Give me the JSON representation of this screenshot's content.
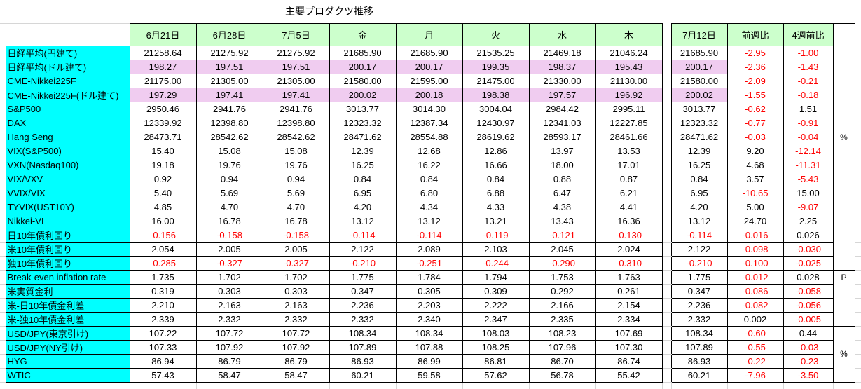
{
  "title": "主要プロダクツ推移",
  "columns": [
    "6月21日",
    "6月28日",
    "7月5日",
    "金",
    "月",
    "火",
    "水",
    "木"
  ],
  "right_columns": [
    "7月12日",
    "前週比",
    "4週前比"
  ],
  "unit_column": [
    {
      "row": 0,
      "span": 1,
      "text": ""
    },
    {
      "row": 1,
      "span": 1,
      "text": ""
    },
    {
      "row": 2,
      "span": 1,
      "text": ""
    },
    {
      "row": 3,
      "span": 1,
      "text": ""
    },
    {
      "row": 4,
      "span": 1,
      "text": ""
    },
    {
      "row": 5,
      "span": 1,
      "text": ""
    },
    {
      "row": 6,
      "span": 7,
      "text": "%",
      "valign": "top"
    },
    {
      "row": 13,
      "span": 3,
      "text": ""
    },
    {
      "row": 16,
      "span": 4,
      "text": "P",
      "valign": "top"
    },
    {
      "row": 20,
      "span": 4,
      "text": "%",
      "valign": "middle"
    }
  ],
  "colors": {
    "label_bg": "#00FFFF",
    "header_bg": "#CCFFCC",
    "highlight_bg": "#F0CCF0",
    "negative_text": "#FF0000",
    "border": "#000000",
    "gridline": "#D6D6D6"
  },
  "rows": [
    {
      "label": "日経平均(円建て)",
      "hl": false,
      "values": [
        "21258.64",
        "21275.92",
        "21275.92",
        "21685.90",
        "21685.90",
        "21535.25",
        "21469.18",
        "21046.24",
        "21685.90"
      ],
      "wow": "-2.95",
      "w4": "-1.00"
    },
    {
      "label": "日経平均(ドル建て)",
      "hl": true,
      "values": [
        "198.27",
        "197.51",
        "197.51",
        "200.17",
        "200.17",
        "199.35",
        "198.37",
        "195.43",
        "200.17"
      ],
      "wow": "-2.36",
      "w4": "-1.43"
    },
    {
      "label": "CME-Nikkei225F",
      "hl": false,
      "values": [
        "21175.00",
        "21305.00",
        "21305.00",
        "21580.00",
        "21595.00",
        "21475.00",
        "21330.00",
        "21130.00",
        "21580.00"
      ],
      "wow": "-2.09",
      "w4": "-0.21"
    },
    {
      "label": "CME-Nikkei225F(ドル建て)",
      "hl": true,
      "values": [
        "197.29",
        "197.41",
        "197.41",
        "200.02",
        "200.18",
        "198.38",
        "197.57",
        "196.92",
        "200.02"
      ],
      "wow": "-1.55",
      "w4": "-0.18"
    },
    {
      "label": "S&P500",
      "hl": false,
      "values": [
        "2950.46",
        "2941.76",
        "2941.76",
        "3013.77",
        "3014.30",
        "3004.04",
        "2984.42",
        "2995.11",
        "3013.77"
      ],
      "wow": "-0.62",
      "w4": "1.51"
    },
    {
      "label": "DAX",
      "hl": false,
      "values": [
        "12339.92",
        "12398.80",
        "12398.80",
        "12323.32",
        "12387.34",
        "12430.97",
        "12341.03",
        "12227.85",
        "12323.32"
      ],
      "wow": "-0.77",
      "w4": "-0.91"
    },
    {
      "label": "Hang Seng",
      "hl": false,
      "values": [
        "28473.71",
        "28542.62",
        "28542.62",
        "28471.62",
        "28554.88",
        "28619.62",
        "28593.17",
        "28461.66",
        "28471.62"
      ],
      "wow": "-0.03",
      "w4": "-0.04"
    },
    {
      "label": "VIX(S&P500)",
      "hl": false,
      "values": [
        "15.40",
        "15.08",
        "15.08",
        "12.39",
        "12.68",
        "12.86",
        "13.97",
        "13.53",
        "12.39"
      ],
      "wow": "9.20",
      "w4": "-12.14"
    },
    {
      "label": "VXN(Nasdaq100)",
      "hl": false,
      "values": [
        "19.18",
        "19.76",
        "19.76",
        "16.25",
        "16.22",
        "16.66",
        "18.00",
        "17.01",
        "16.25"
      ],
      "wow": "4.68",
      "w4": "-11.31"
    },
    {
      "label": "VIX/VXV",
      "hl": false,
      "values": [
        "0.92",
        "0.94",
        "0.94",
        "0.84",
        "0.84",
        "0.84",
        "0.88",
        "0.87",
        "0.84"
      ],
      "wow": "3.57",
      "w4": "-5.43"
    },
    {
      "label": "VVIX/VIX",
      "hl": false,
      "values": [
        "5.40",
        "5.69",
        "5.69",
        "6.95",
        "6.80",
        "6.88",
        "6.47",
        "6.21",
        "6.95"
      ],
      "wow": "-10.65",
      "w4": "15.00"
    },
    {
      "label": "TYVIX(UST10Y)",
      "hl": false,
      "values": [
        "4.85",
        "4.70",
        "4.70",
        "4.20",
        "4.34",
        "4.33",
        "4.38",
        "4.41",
        "4.20"
      ],
      "wow": "5.00",
      "w4": "-9.07"
    },
    {
      "label": "Nikkei-VI",
      "hl": false,
      "values": [
        "16.00",
        "16.78",
        "16.78",
        "13.12",
        "13.12",
        "13.21",
        "13.43",
        "16.36",
        "13.12"
      ],
      "wow": "24.70",
      "w4": "2.25"
    },
    {
      "label": "日10年債利回り",
      "hl": false,
      "values": [
        "-0.156",
        "-0.158",
        "-0.158",
        "-0.114",
        "-0.114",
        "-0.119",
        "-0.121",
        "-0.130",
        "-0.114"
      ],
      "wow": "-0.016",
      "w4": "0.026"
    },
    {
      "label": "米10年債利回り",
      "hl": false,
      "values": [
        "2.054",
        "2.005",
        "2.005",
        "2.122",
        "2.089",
        "2.103",
        "2.045",
        "2.024",
        "2.122"
      ],
      "wow": "-0.098",
      "w4": "-0.030"
    },
    {
      "label": "独10年債利回り",
      "hl": false,
      "values": [
        "-0.285",
        "-0.327",
        "-0.327",
        "-0.210",
        "-0.251",
        "-0.244",
        "-0.290",
        "-0.310",
        "-0.210"
      ],
      "wow": "-0.100",
      "w4": "-0.025"
    },
    {
      "label": "Break-even inflation rate",
      "hl": false,
      "values": [
        "1.735",
        "1.702",
        "1.702",
        "1.775",
        "1.784",
        "1.794",
        "1.753",
        "1.763",
        "1.775"
      ],
      "wow": "-0.012",
      "w4": "0.028"
    },
    {
      "label": "米実質金利",
      "hl": false,
      "values": [
        "0.319",
        "0.303",
        "0.303",
        "0.347",
        "0.305",
        "0.309",
        "0.292",
        "0.261",
        "0.347"
      ],
      "wow": "-0.086",
      "w4": "-0.058"
    },
    {
      "label": "米-日10年債金利差",
      "hl": false,
      "values": [
        "2.210",
        "2.163",
        "2.163",
        "2.236",
        "2.203",
        "2.222",
        "2.166",
        "2.154",
        "2.236"
      ],
      "wow": "-0.082",
      "w4": "-0.056"
    },
    {
      "label": "米-独10年債金利差",
      "hl": false,
      "values": [
        "2.339",
        "2.332",
        "2.332",
        "2.332",
        "2.340",
        "2.347",
        "2.335",
        "2.334",
        "2.332"
      ],
      "wow": "0.002",
      "w4": "-0.005"
    },
    {
      "label": "USD/JPY(東京引け)",
      "hl": false,
      "values": [
        "107.22",
        "107.72",
        "107.72",
        "108.34",
        "108.34",
        "108.03",
        "108.23",
        "107.69",
        "108.34"
      ],
      "wow": "-0.60",
      "w4": "0.44"
    },
    {
      "label": "USD/JPY(NY引け)",
      "hl": false,
      "values": [
        "107.33",
        "107.92",
        "107.92",
        "107.89",
        "107.88",
        "108.25",
        "107.96",
        "107.30",
        "107.89"
      ],
      "wow": "-0.55",
      "w4": "-0.03"
    },
    {
      "label": "HYG",
      "hl": false,
      "values": [
        "86.94",
        "86.79",
        "86.79",
        "86.93",
        "86.99",
        "86.81",
        "86.70",
        "86.74",
        "86.93"
      ],
      "wow": "-0.22",
      "w4": "-0.23"
    },
    {
      "label": "WTIC",
      "hl": false,
      "values": [
        "57.43",
        "58.47",
        "58.47",
        "60.21",
        "59.58",
        "57.62",
        "56.78",
        "55.42",
        "60.21"
      ],
      "wow": "-7.96",
      "w4": "-3.50"
    }
  ]
}
